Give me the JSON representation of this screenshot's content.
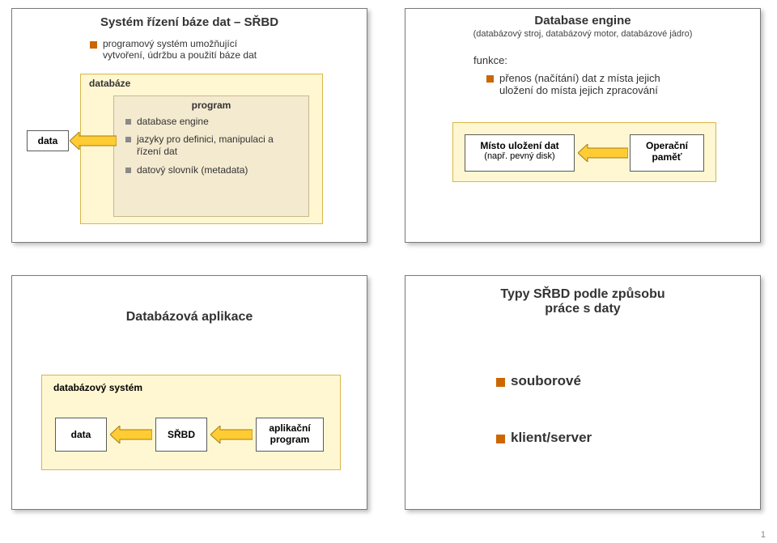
{
  "accent_color": "#cc6600",
  "yellow_bg": "#fff7d1",
  "yellow_border": "#d9b648",
  "panel_bg": "#f4ead0",
  "panel_border": "#c7b98a",
  "white_box_bg": "#ffffff",
  "box_border": "#5b5b5b",
  "arrow": "#ffcc33",
  "title_fontsize": 15,
  "body_fontsize": 12,
  "small_fontsize": 11,
  "page_number": "1",
  "slide1": {
    "title": "Systém řízení báze dat – SŘBD",
    "intro_lines": [
      "programový systém umožňující",
      "vytvoření, údržbu a použití báze dat"
    ],
    "data_box": "data",
    "db_label": "databáze",
    "program_label": "program",
    "items": [
      "database engine",
      "jazyky pro definici, manipulaci a řízení dat",
      "datový slovník (metadata)"
    ]
  },
  "slide2": {
    "title": "Database engine",
    "subtitle": "(databázový stroj, databázový motor, databázové jádro)",
    "func_label": "funkce:",
    "func_lines": [
      "přenos (načítání) dat z místa jejich",
      "uložení do místa jejich zpracování"
    ],
    "box_left_l1": "Místo uložení dat",
    "box_left_l2": "(např. pevný disk)",
    "box_right_l1": "Operační",
    "box_right_l2": "paměť"
  },
  "slide3": {
    "title": "Databázová aplikace",
    "system_label": "databázový systém",
    "boxes": [
      "data",
      "SŘBD",
      "aplikační program"
    ]
  },
  "slide4": {
    "title_l1": "Typy SŘBD podle způsobu",
    "title_l2": "práce s daty",
    "items": [
      "souborové",
      "klient/server"
    ]
  }
}
